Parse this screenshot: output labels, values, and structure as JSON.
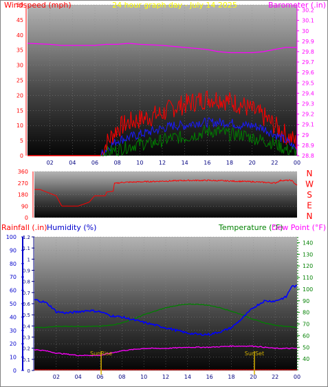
{
  "chart_data": [
    {
      "type": "line",
      "id": "wind_baro",
      "title": "24 hour graph day - July 14 2025",
      "left_axis_label": "Windspeed (mph)",
      "right_axis_label": "Barometer (.in)",
      "left_ticks": [
        "0",
        "5",
        "10",
        "15",
        "20",
        "25",
        "30",
        "35",
        "40",
        "45",
        "50"
      ],
      "right_ticks": [
        "28.8",
        "28.9",
        "29",
        "29.1",
        "29.2",
        "29.3",
        "29.4",
        "29.5",
        "29.6",
        "29.7",
        "29.8",
        "29.9",
        "30",
        "30.1",
        "30.2"
      ],
      "x_ticks": [
        "02",
        "04",
        "06",
        "08",
        "10",
        "12",
        "14",
        "16",
        "18",
        "20",
        "22",
        "00"
      ],
      "ylim_left": [
        0,
        50
      ],
      "ylim_right": [
        28.8,
        30.25
      ],
      "xlim_hours": [
        0,
        24
      ],
      "colors": {
        "gust": "#ff0000",
        "avg": "#1a1aff",
        "low": "#008000",
        "barometer": "#ff00ff",
        "title": "#ffff00",
        "left_label": "#ff0000",
        "right_label": "#ff00ff"
      },
      "series": [
        {
          "key": "barometer",
          "x": [
            0,
            2,
            3,
            4,
            6,
            7,
            8,
            9,
            10,
            12,
            14,
            15,
            16,
            17,
            18,
            19,
            20,
            21,
            22,
            23,
            24
          ],
          "y": [
            29.88,
            29.87,
            29.86,
            29.86,
            29.86,
            29.87,
            29.87,
            29.88,
            29.87,
            29.86,
            29.84,
            29.83,
            29.82,
            29.8,
            29.79,
            29.79,
            29.79,
            29.8,
            29.82,
            29.84,
            29.84
          ]
        },
        {
          "key": "gust",
          "x": [
            0,
            6.5,
            7,
            8,
            9,
            10,
            11,
            12,
            13,
            14,
            15,
            16,
            17,
            18,
            19,
            20,
            21,
            22,
            23,
            24
          ],
          "y": [
            0,
            0,
            4,
            9,
            11,
            12,
            13,
            14,
            16,
            17,
            18,
            19,
            19,
            18,
            17,
            15,
            13,
            10,
            7,
            4
          ]
        },
        {
          "key": "avg",
          "x": [
            0,
            6.5,
            7,
            8,
            9,
            10,
            11,
            12,
            13,
            14,
            15,
            16,
            17,
            18,
            19,
            20,
            21,
            22,
            23,
            24
          ],
          "y": [
            0,
            0,
            2,
            5,
            6,
            7,
            8,
            9,
            10,
            10,
            11,
            11,
            11,
            11,
            10,
            10,
            9,
            7,
            5,
            2
          ]
        },
        {
          "key": "low",
          "x": [
            0,
            6.5,
            7,
            8,
            9,
            10,
            11,
            12,
            13,
            14,
            15,
            16,
            17,
            18,
            19,
            20,
            21,
            22,
            23,
            24
          ],
          "y": [
            0,
            0,
            1,
            2,
            3,
            4,
            4,
            5,
            6,
            6,
            7,
            8,
            8,
            7,
            7,
            6,
            5,
            4,
            2,
            1
          ]
        }
      ]
    },
    {
      "type": "line",
      "id": "wind_direction",
      "left_ticks": [
        "0",
        "90",
        "180",
        "270",
        "360"
      ],
      "compass_labels": [
        "N",
        "W",
        "S",
        "E",
        "N"
      ],
      "ylim": [
        0,
        360
      ],
      "colors": {
        "direction": "#ff0000",
        "compass": "#ff0000"
      },
      "series": [
        {
          "key": "direction",
          "x": [
            0,
            0.5,
            2,
            2.5,
            4,
            5,
            5.5,
            6.5,
            6.6,
            7.2,
            7.3,
            8,
            10,
            12,
            14,
            16,
            18,
            20,
            22,
            22.5,
            23.5,
            24
          ],
          "y": [
            220,
            220,
            170,
            90,
            90,
            120,
            170,
            170,
            200,
            205,
            265,
            275,
            280,
            285,
            290,
            290,
            285,
            280,
            270,
            290,
            290,
            250
          ]
        }
      ]
    },
    {
      "type": "line",
      "id": "rain_hum_temp",
      "labels": {
        "rainfall": "Rainfall (.in)",
        "humidity": "Humidity (%)",
        "temperature": "Temperature (°F)",
        "dewpoint": "Dew Point (°F)"
      },
      "humidity_ticks": [
        "0",
        "10",
        "20",
        "30",
        "40",
        "50",
        "60",
        "70",
        "80",
        "90",
        "100"
      ],
      "rain_ticks": [
        "0",
        "0.1",
        "0.2",
        "0.3",
        "0.4",
        "0.5",
        "0.6",
        "0.7",
        "0.8",
        "0.9",
        "1",
        "1.1",
        "1.2"
      ],
      "temp_ticks": [
        "40",
        "50",
        "60",
        "70",
        "80",
        "90",
        "100",
        "110",
        "120",
        "130",
        "140"
      ],
      "x_ticks": [
        "02",
        "04",
        "06",
        "08",
        "10",
        "12",
        "14",
        "16",
        "18",
        "20",
        "22",
        "00"
      ],
      "ylim_humidity": [
        0,
        100
      ],
      "ylim_rain": [
        0,
        1.2
      ],
      "ylim_temp": [
        30,
        145
      ],
      "annotations": [
        {
          "label": "SunRise",
          "hour": 6.1
        },
        {
          "label": "SunSet",
          "hour": 20.1
        }
      ],
      "colors": {
        "humidity": "#0000ff",
        "temperature": "#008000",
        "dewpoint": "#ff00ff",
        "rainfall": "#ff0000",
        "annotation": "#d4b000"
      },
      "series": [
        {
          "key": "temperature",
          "x": [
            0,
            1,
            2,
            3,
            4,
            5,
            6,
            7,
            8,
            9,
            10,
            11,
            12,
            13,
            14,
            15,
            16,
            17,
            18,
            19,
            20,
            21,
            22,
            23,
            24
          ],
          "y": [
            67,
            67,
            68,
            68,
            68,
            68,
            68,
            69,
            71,
            74,
            78,
            81,
            84,
            86,
            87,
            87,
            86,
            84,
            81,
            78,
            74,
            71,
            69,
            68,
            67
          ]
        },
        {
          "key": "humidity",
          "x": [
            0,
            1,
            1.5,
            2,
            3,
            4,
            5,
            6,
            7,
            8,
            9,
            10,
            11,
            12,
            13,
            14,
            15,
            16,
            17,
            18,
            19,
            20,
            21,
            22,
            23,
            23.5,
            24
          ],
          "y": [
            53,
            51,
            48,
            44,
            43,
            44,
            45,
            44,
            41,
            40,
            38,
            36,
            34,
            32,
            30,
            28,
            27,
            27,
            29,
            32,
            39,
            47,
            52,
            52,
            55,
            63,
            63
          ]
        },
        {
          "key": "dewpoint",
          "x": [
            0,
            1,
            2,
            3,
            4,
            5,
            6,
            7,
            8,
            9,
            10,
            12,
            14,
            16,
            18,
            20,
            21,
            22,
            23,
            24
          ],
          "y": [
            48,
            47,
            45,
            44,
            43,
            43,
            43,
            45,
            47,
            48,
            49,
            49,
            50,
            50,
            51,
            51,
            50,
            49,
            49,
            49
          ]
        },
        {
          "key": "rainfall",
          "x": [
            0,
            24
          ],
          "y": [
            0,
            0
          ]
        }
      ]
    }
  ]
}
